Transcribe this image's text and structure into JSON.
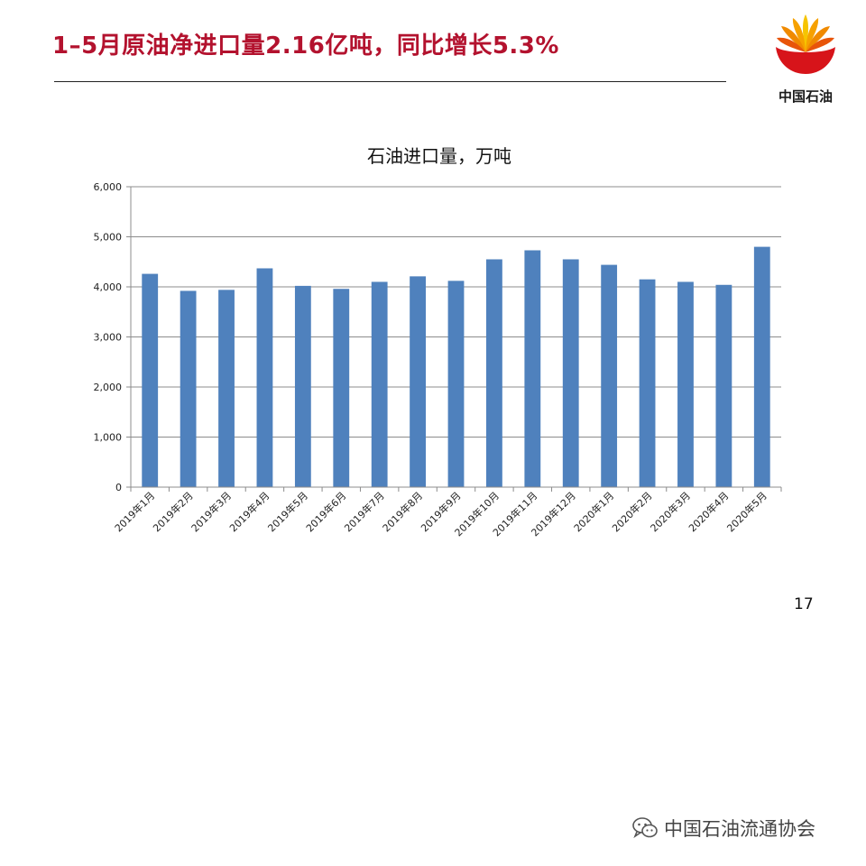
{
  "slide": {
    "title": "1–5月原油净进口量2.16亿吨，同比增长5.3%",
    "page_number": "17",
    "logo_text": "中国石油",
    "watermark": "中国石油流通协会"
  },
  "colors": {
    "title": "#b3122e",
    "bar": "#4f81bd",
    "logo_red": "#d7141a",
    "logo_yellow": "#f6c400"
  },
  "icons": {
    "logo": "cnpc-petal-logo-icon",
    "watermark": "wechat-icon"
  },
  "chart_data": {
    "type": "bar",
    "title": "石油进口量，万吨",
    "categories": [
      "2019年1月",
      "2019年2月",
      "2019年3月",
      "2019年4月",
      "2019年5月",
      "2019年6月",
      "2019年7月",
      "2019年8月",
      "2019年9月",
      "2019年10月",
      "2019年11月",
      "2019年12月",
      "2020年1月",
      "2020年2月",
      "2020年3月",
      "2020年4月",
      "2020年5月"
    ],
    "values": [
      4260,
      3920,
      3940,
      4370,
      4020,
      3960,
      4100,
      4210,
      4120,
      4550,
      4730,
      4550,
      4440,
      4150,
      4100,
      4040,
      4800
    ],
    "ylim": [
      0,
      6000
    ],
    "yticks": [
      0,
      1000,
      2000,
      3000,
      4000,
      5000,
      6000
    ],
    "ytick_labels": [
      "0",
      "1,000",
      "2,000",
      "3,000",
      "4,000",
      "5,000",
      "6,000"
    ],
    "xlabel": "",
    "ylabel": "",
    "grid": true,
    "legend": "none"
  }
}
